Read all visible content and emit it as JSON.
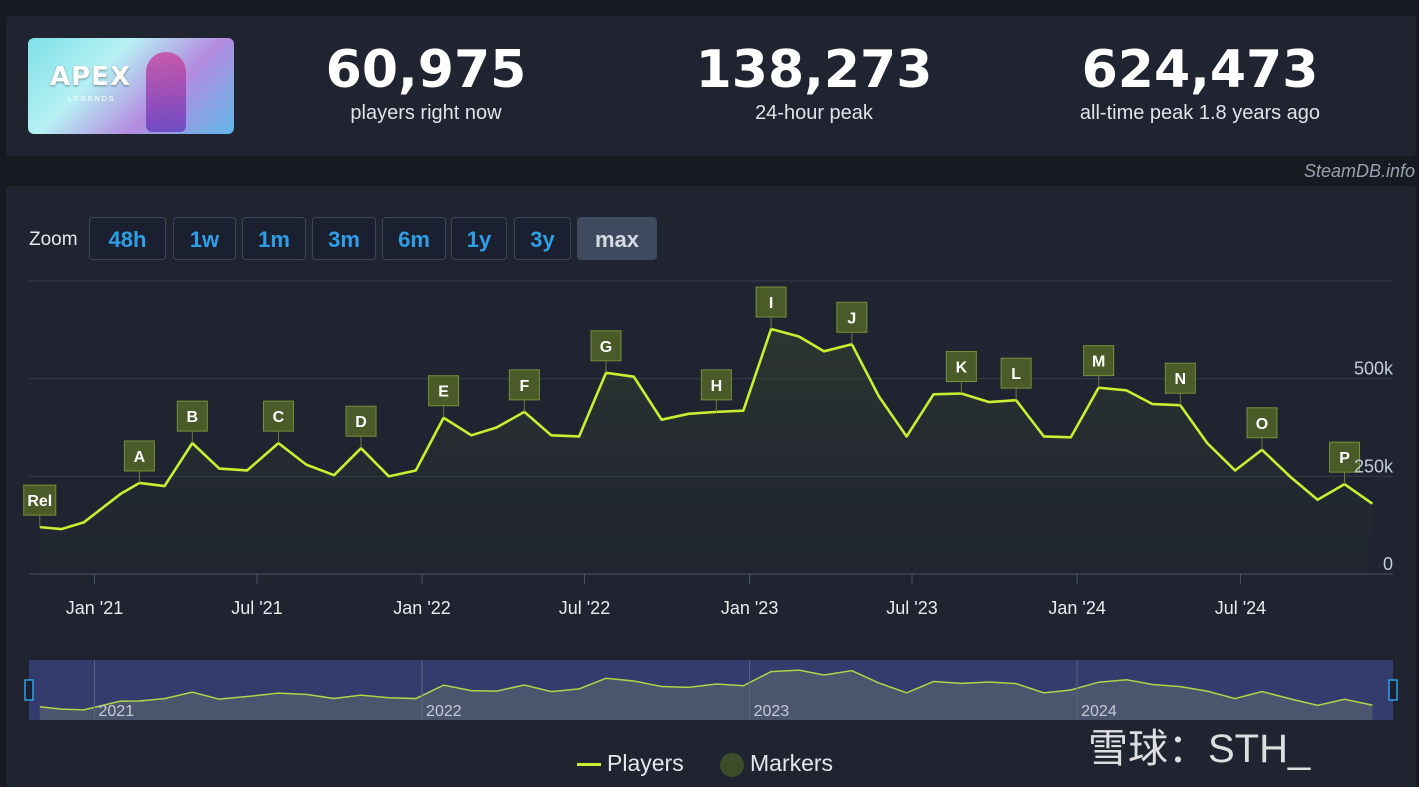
{
  "header": {
    "game_title": "APEX",
    "game_subtitle": "LEGENDS",
    "stats": [
      {
        "value": "60,975",
        "label": "players right now"
      },
      {
        "value": "138,273",
        "label": "24-hour peak"
      },
      {
        "value": "624,473",
        "label": "all-time peak 1.8 years ago"
      }
    ]
  },
  "credit": "SteamDB.info",
  "zoom": {
    "label": "Zoom",
    "options": [
      "48h",
      "1w",
      "1m",
      "3m",
      "6m",
      "1y",
      "3y",
      "max"
    ],
    "active": "max"
  },
  "legend": {
    "players": "Players",
    "markers": "Markers"
  },
  "watermark": "雪球：STH_",
  "colors": {
    "line": "#c6f030",
    "marker_fill": "#4a5a28",
    "marker_border": "#7a8e3a",
    "accent": "#2e9fe6"
  },
  "chart_data": {
    "type": "line",
    "x_ticks": [
      "Jan '21",
      "Jul '21",
      "Jan '22",
      "Jul '22",
      "Jan '23",
      "Jul '23",
      "Jan '24",
      "Jul '24"
    ],
    "y_ticks": [
      "0",
      "250k",
      "500k"
    ],
    "ylim": [
      0,
      750000
    ],
    "navigator_ticks": [
      "2021",
      "2022",
      "2023",
      "2024"
    ],
    "series": [
      {
        "name": "Players",
        "points": [
          [
            "2020-11-01",
            120000
          ],
          [
            "2020-11-25",
            115000
          ],
          [
            "2020-12-20",
            132000
          ],
          [
            "2021-01-30",
            205000
          ],
          [
            "2021-02-20",
            233000
          ],
          [
            "2021-03-20",
            225000
          ],
          [
            "2021-04-20",
            335000
          ],
          [
            "2021-05-20",
            270000
          ],
          [
            "2021-06-20",
            265000
          ],
          [
            "2021-07-25",
            335000
          ],
          [
            "2021-08-25",
            280000
          ],
          [
            "2021-09-25",
            253000
          ],
          [
            "2021-10-25",
            322000
          ],
          [
            "2021-11-25",
            250000
          ],
          [
            "2021-12-25",
            265000
          ],
          [
            "2022-01-25",
            400000
          ],
          [
            "2022-02-25",
            355000
          ],
          [
            "2022-03-25",
            375000
          ],
          [
            "2022-04-25",
            415000
          ],
          [
            "2022-05-25",
            355000
          ],
          [
            "2022-06-25",
            352000
          ],
          [
            "2022-07-25",
            515000
          ],
          [
            "2022-08-25",
            505000
          ],
          [
            "2022-09-25",
            395000
          ],
          [
            "2022-10-25",
            410000
          ],
          [
            "2022-11-25",
            415000
          ],
          [
            "2022-12-25",
            418000
          ],
          [
            "2023-01-25",
            627000
          ],
          [
            "2023-02-25",
            608000
          ],
          [
            "2023-03-25",
            570000
          ],
          [
            "2023-04-25",
            588000
          ],
          [
            "2023-05-25",
            455000
          ],
          [
            "2023-06-25",
            352000
          ],
          [
            "2023-07-25",
            460000
          ],
          [
            "2023-08-25",
            462000
          ],
          [
            "2023-09-25",
            440000
          ],
          [
            "2023-10-25",
            445000
          ],
          [
            "2023-11-25",
            352000
          ],
          [
            "2023-12-25",
            350000
          ],
          [
            "2024-01-25",
            477000
          ],
          [
            "2024-02-25",
            470000
          ],
          [
            "2024-03-25",
            435000
          ],
          [
            "2024-04-25",
            432000
          ],
          [
            "2024-05-25",
            335000
          ],
          [
            "2024-06-25",
            265000
          ],
          [
            "2024-07-25",
            318000
          ],
          [
            "2024-08-25",
            250000
          ],
          [
            "2024-09-25",
            190000
          ],
          [
            "2024-10-25",
            230000
          ],
          [
            "2024-11-25",
            180000
          ]
        ]
      }
    ],
    "markers": [
      {
        "label": "Rel",
        "x": "2020-11-01",
        "y": 120000
      },
      {
        "label": "A",
        "x": "2021-02-20",
        "y": 233000
      },
      {
        "label": "B",
        "x": "2021-04-20",
        "y": 335000
      },
      {
        "label": "C",
        "x": "2021-07-25",
        "y": 335000
      },
      {
        "label": "D",
        "x": "2021-10-25",
        "y": 322000
      },
      {
        "label": "E",
        "x": "2022-01-25",
        "y": 400000
      },
      {
        "label": "F",
        "x": "2022-04-25",
        "y": 415000
      },
      {
        "label": "G",
        "x": "2022-07-25",
        "y": 515000
      },
      {
        "label": "H",
        "x": "2022-11-25",
        "y": 415000
      },
      {
        "label": "I",
        "x": "2023-01-25",
        "y": 627000
      },
      {
        "label": "J",
        "x": "2023-04-25",
        "y": 588000
      },
      {
        "label": "K",
        "x": "2023-08-25",
        "y": 462000
      },
      {
        "label": "L",
        "x": "2023-10-25",
        "y": 445000
      },
      {
        "label": "M",
        "x": "2024-01-25",
        "y": 477000
      },
      {
        "label": "N",
        "x": "2024-04-25",
        "y": 432000
      },
      {
        "label": "O",
        "x": "2024-07-25",
        "y": 318000
      },
      {
        "label": "P",
        "x": "2024-10-25",
        "y": 230000
      }
    ],
    "legend_position": "bottom-center",
    "grid": true
  }
}
